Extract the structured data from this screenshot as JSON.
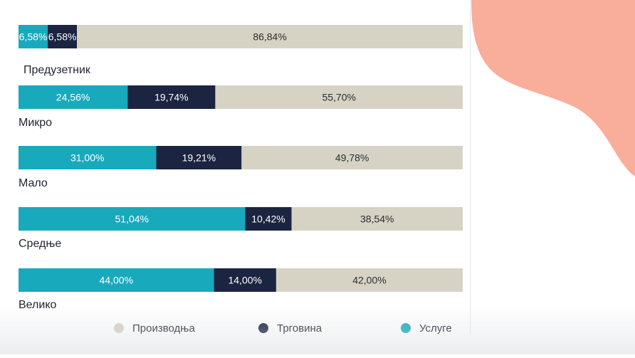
{
  "chart_data": {
    "type": "bar",
    "orientation": "horizontal",
    "stacked": true,
    "categories": [
      "Предузетник",
      "Микро",
      "Мало",
      "Средње",
      "Велико"
    ],
    "series": [
      {
        "name": "Услуге",
        "color": "#19a9bd",
        "values": [
          6.58,
          24.56,
          31.0,
          51.04,
          44.0
        ],
        "labels": [
          "6,58%",
          "24,56%",
          "31,00%",
          "51,04%",
          "44,00%"
        ]
      },
      {
        "name": "Трговина",
        "color": "#1b2440",
        "values": [
          6.58,
          19.74,
          19.21,
          10.42,
          14.0
        ],
        "labels": [
          "6,58%",
          "19,74%",
          "19,21%",
          "10,42%",
          "14,00%"
        ]
      },
      {
        "name": "Производња",
        "color": "#d6d3c4",
        "values": [
          86.84,
          55.7,
          49.78,
          38.54,
          42.0
        ],
        "labels": [
          "86,84%",
          "55,70%",
          "49,78%",
          "38,54%",
          "42,00%"
        ]
      }
    ],
    "legend": {
      "placement": "bottom",
      "order": [
        "Производња",
        "Трговина",
        "Услуге"
      ]
    },
    "xlim": [
      0,
      100
    ],
    "grid": false
  },
  "colors": {
    "decoration": "#f9ad9b",
    "category_text": "#1f2430",
    "label_light": "#ffffff",
    "label_dark": "#2a2d35"
  }
}
